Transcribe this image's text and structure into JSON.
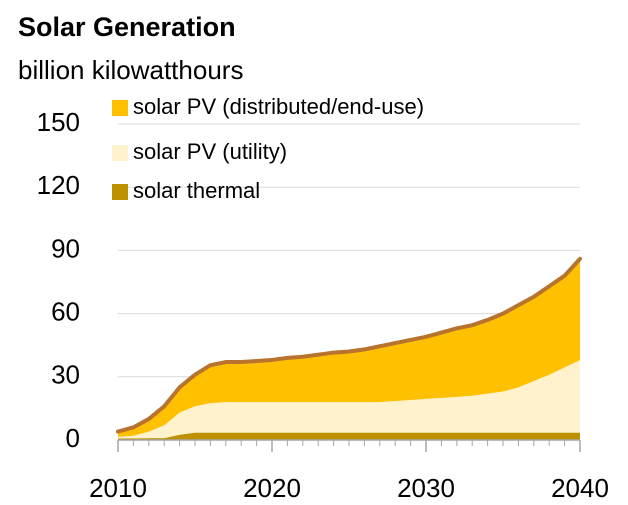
{
  "chart_data": {
    "type": "stacked_area",
    "title": "Solar Generation",
    "subtitle": "billion kilowatthours",
    "x": [
      2010,
      2011,
      2012,
      2013,
      2014,
      2015,
      2016,
      2017,
      2018,
      2019,
      2020,
      2021,
      2022,
      2023,
      2024,
      2025,
      2026,
      2027,
      2028,
      2029,
      2030,
      2031,
      2032,
      2033,
      2034,
      2035,
      2036,
      2037,
      2038,
      2039,
      2040
    ],
    "series": [
      {
        "name": "solar thermal",
        "color": "#bf9000",
        "values": [
          0.8,
          0.8,
          0.9,
          0.9,
          2.5,
          3.5,
          3.5,
          3.5,
          3.5,
          3.5,
          3.5,
          3.5,
          3.5,
          3.5,
          3.5,
          3.5,
          3.5,
          3.5,
          3.5,
          3.5,
          3.5,
          3.5,
          3.5,
          3.5,
          3.5,
          3.5,
          3.5,
          3.5,
          3.5,
          3.5,
          3.5
        ]
      },
      {
        "name": "solar PV (utility)",
        "color": "#fff2cc",
        "values": [
          0.7,
          1.2,
          3.1,
          6.1,
          10.5,
          12.5,
          14,
          14.5,
          14.5,
          14.5,
          14.5,
          14.5,
          14.5,
          14.5,
          14.5,
          14.5,
          14.5,
          14.5,
          15,
          15.5,
          16,
          16.5,
          17,
          17.5,
          18.5,
          19.5,
          21.5,
          24.5,
          27.5,
          31,
          34.5
        ]
      },
      {
        "name": "solar PV (distributed/end-use)",
        "color": "#ffc000",
        "values": [
          2.5,
          4,
          6,
          9,
          12,
          15,
          18,
          19,
          19,
          19.5,
          20,
          21,
          21.5,
          22.5,
          23.5,
          24,
          25,
          26.5,
          27.5,
          28.5,
          29.5,
          31,
          32.5,
          33.5,
          35,
          37,
          39,
          40,
          42,
          43.5,
          48
        ]
      }
    ],
    "outline_color": "#b8732e",
    "legend_order": [
      2,
      1,
      0
    ],
    "xlim": [
      2010,
      2040
    ],
    "xticks": [
      2010,
      2020,
      2030,
      2040
    ],
    "ylim": [
      0,
      150
    ],
    "yticks": [
      0,
      30,
      60,
      90,
      120,
      150
    ],
    "grid": true
  }
}
